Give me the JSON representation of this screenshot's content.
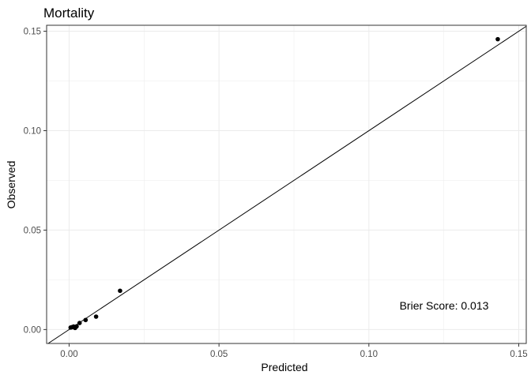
{
  "chart_data": {
    "type": "scatter",
    "title": "Mortality",
    "xlabel": "Predicted",
    "ylabel": "Observed",
    "xlim": [
      -0.0075,
      0.1525
    ],
    "ylim": [
      -0.007,
      0.153
    ],
    "x_ticks": [
      "0.00",
      "0.05",
      "0.10",
      "0.15"
    ],
    "x_tick_values": [
      0,
      0.05,
      0.1,
      0.15
    ],
    "y_ticks": [
      "0.00",
      "0.05",
      "0.10",
      "0.15"
    ],
    "y_tick_values": [
      0,
      0.05,
      0.1,
      0.15
    ],
    "grid": true,
    "reference_line": "y = x",
    "annotation": "Brier Score: 0.013",
    "points": [
      {
        "x": 0.0005,
        "y": 0.001
      },
      {
        "x": 0.001,
        "y": 0.0012
      },
      {
        "x": 0.0015,
        "y": 0.0015
      },
      {
        "x": 0.002,
        "y": 0.0008
      },
      {
        "x": 0.0025,
        "y": 0.0016
      },
      {
        "x": 0.0035,
        "y": 0.0033
      },
      {
        "x": 0.0055,
        "y": 0.0048
      },
      {
        "x": 0.009,
        "y": 0.0065
      },
      {
        "x": 0.017,
        "y": 0.0195
      },
      {
        "x": 0.143,
        "y": 0.146
      }
    ]
  },
  "colors": {
    "panel_border": "#333333",
    "grid": "#ebebeb",
    "point": "#000000",
    "line": "#000000"
  }
}
